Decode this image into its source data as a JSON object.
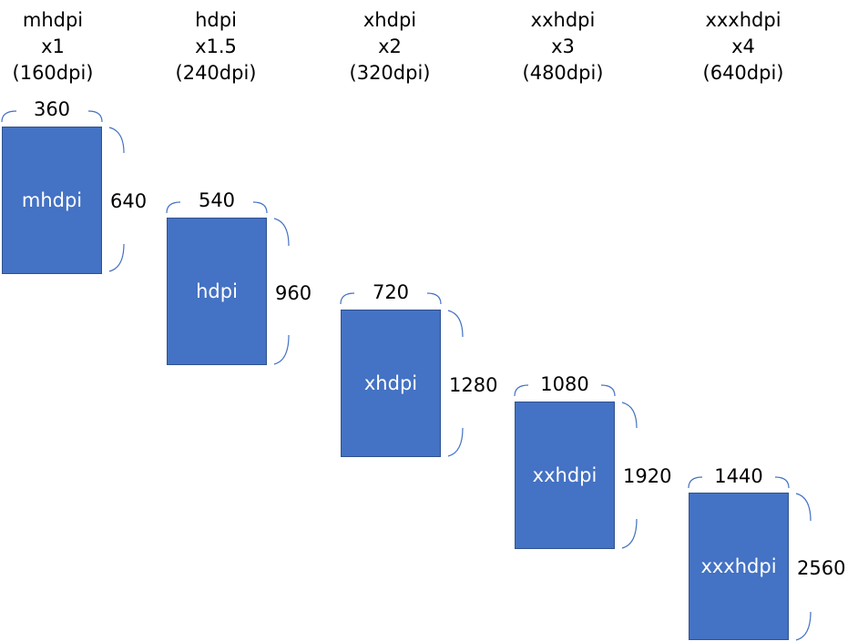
{
  "densities": [
    {
      "name": "mhdpi",
      "scale": "x1",
      "dpi": "(160dpi)",
      "label": "mhdpi",
      "width": "360",
      "height": "640"
    },
    {
      "name": "hdpi",
      "scale": "x1.5",
      "dpi": "(240dpi)",
      "label": "hdpi",
      "width": "540",
      "height": "960"
    },
    {
      "name": "xhdpi",
      "scale": "x2",
      "dpi": "(320dpi)",
      "label": "xhdpi",
      "width": "720",
      "height": "1280"
    },
    {
      "name": "xxhdpi",
      "scale": "x3",
      "dpi": "(480dpi)",
      "label": "xxhdpi",
      "width": "1080",
      "height": "1920"
    },
    {
      "name": "xxxhdpi",
      "scale": "x4",
      "dpi": "(640dpi)",
      "label": "xxxhdpi",
      "width": "1440",
      "height": "2560"
    }
  ],
  "colors": {
    "screen": "#4472c4",
    "screen_border": "#2f528f",
    "bracket": "#4472c4"
  }
}
